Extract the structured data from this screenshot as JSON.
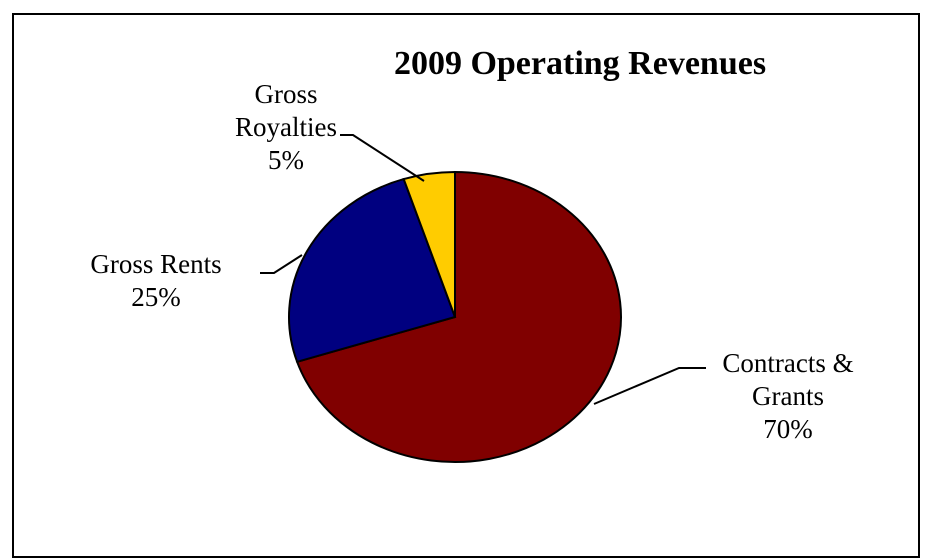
{
  "chart_data": {
    "type": "pie",
    "title": "2009 Operating Revenues",
    "slices": [
      {
        "label": [
          "Contracts &",
          "Grants"
        ],
        "percent_label": "70%",
        "value": 70,
        "color": "#800000"
      },
      {
        "label": [
          "Gross Rents"
        ],
        "percent_label": "25%",
        "value": 25,
        "color": "#000080"
      },
      {
        "label": [
          "Gross",
          "Royalties"
        ],
        "percent_label": "5%",
        "value": 5,
        "color": "#FFCC00"
      }
    ]
  }
}
